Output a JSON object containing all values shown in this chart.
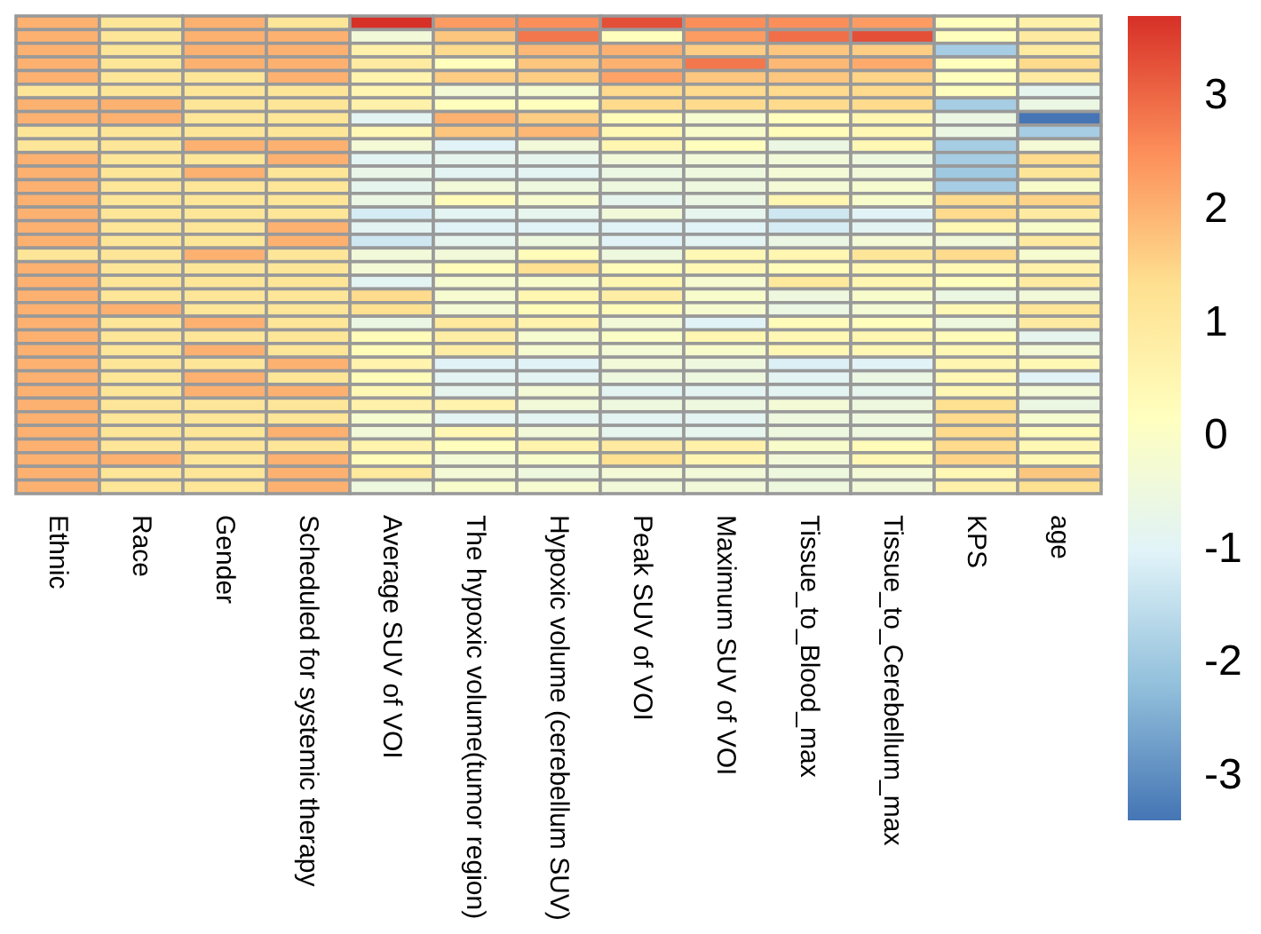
{
  "chart_data": {
    "type": "heatmap",
    "categories": [
      "Ethnic",
      "Race",
      "Gender",
      "Scheduled for systemic therapy",
      "Average SUV of VOI",
      "The hypoxic volume(tumor region)",
      "Hypoxic volume (cerebellum SUV)",
      "Peak SUV of VOI",
      "Maximum SUV of VOI",
      "Tissue_to_Blood_max",
      "Tissue_to_Cerebellum_max",
      "KPS",
      "age"
    ],
    "y_categories": [
      null,
      null,
      null,
      null,
      null,
      null,
      null,
      null,
      null,
      null,
      null,
      null,
      null,
      null,
      null,
      null,
      null,
      null,
      null,
      null,
      null,
      null,
      null,
      null,
      null,
      null,
      null,
      null,
      null,
      null,
      null,
      null,
      null,
      null,
      null
    ],
    "cells": [
      [
        2.0,
        1.1,
        2.0,
        1.1,
        3.7,
        2.3,
        2.5,
        3.3,
        2.5,
        2.5,
        2.3,
        0.2,
        0.7
      ],
      [
        2.0,
        1.1,
        2.0,
        2.0,
        -0.4,
        1.7,
        2.8,
        0.2,
        2.3,
        2.9,
        3.3,
        0.2,
        0.9
      ],
      [
        2.0,
        1.1,
        2.0,
        2.0,
        0.7,
        1.4,
        1.9,
        2.0,
        1.6,
        1.7,
        1.6,
        -1.9,
        0.9
      ],
      [
        2.0,
        1.1,
        2.0,
        2.0,
        0.9,
        0.2,
        1.7,
        2.0,
        2.8,
        1.9,
        2.1,
        0.2,
        1.4
      ],
      [
        2.0,
        1.1,
        1.1,
        2.0,
        0.6,
        1.6,
        1.6,
        2.2,
        1.7,
        1.7,
        1.5,
        0.2,
        0.9
      ],
      [
        1.1,
        1.1,
        1.1,
        1.1,
        0.5,
        -0.3,
        -0.2,
        1.4,
        1.4,
        1.4,
        1.4,
        0.2,
        -0.8
      ],
      [
        2.0,
        2.0,
        1.1,
        1.1,
        0.7,
        0.2,
        0.2,
        1.4,
        1.4,
        1.4,
        1.4,
        -1.9,
        -0.6
      ],
      [
        2.0,
        2.0,
        1.1,
        1.1,
        -0.9,
        2.0,
        1.6,
        0.3,
        -0.2,
        0.2,
        0.5,
        -0.6,
        -3.4
      ],
      [
        1.1,
        1.1,
        1.1,
        1.1,
        0.4,
        1.7,
        1.9,
        0.4,
        -0.1,
        0.3,
        0.4,
        -0.6,
        -1.9
      ],
      [
        1.1,
        1.1,
        2.0,
        2.0,
        -0.3,
        -1.0,
        -0.4,
        0.5,
        0.2,
        -0.6,
        0.4,
        -1.9,
        -0.3
      ],
      [
        2.0,
        1.1,
        1.1,
        2.0,
        -0.9,
        -0.8,
        -0.8,
        -0.4,
        -0.4,
        -0.4,
        -0.5,
        -1.9,
        1.4
      ],
      [
        2.0,
        1.1,
        2.0,
        1.1,
        -0.7,
        -0.9,
        -0.9,
        -0.6,
        -0.5,
        -0.3,
        -0.4,
        -2.0,
        1.1
      ],
      [
        2.0,
        1.1,
        1.1,
        1.1,
        -0.8,
        -0.4,
        -0.5,
        -0.5,
        -0.5,
        -0.3,
        -0.2,
        -1.9,
        -0.1
      ],
      [
        2.0,
        1.1,
        1.1,
        1.1,
        -0.6,
        0.3,
        -0.2,
        -0.8,
        -0.6,
        0.5,
        -0.1,
        1.4,
        1.5
      ],
      [
        2.0,
        1.1,
        1.1,
        1.1,
        -1.2,
        -0.9,
        -0.8,
        -0.4,
        -0.8,
        -1.3,
        -1.0,
        1.4,
        0.9
      ],
      [
        2.0,
        1.1,
        1.1,
        2.0,
        -0.9,
        -1.0,
        -1.0,
        -1.0,
        -1.0,
        -1.2,
        -0.9,
        0.4,
        -0.1
      ],
      [
        2.0,
        1.1,
        1.1,
        2.0,
        -1.3,
        -0.8,
        -0.5,
        -1.0,
        -0.9,
        -0.6,
        -0.3,
        -0.4,
        0.9
      ],
      [
        1.1,
        1.1,
        2.0,
        1.1,
        -0.4,
        -0.4,
        0.3,
        -0.5,
        0.4,
        0.5,
        1.1,
        1.4,
        -0.2
      ],
      [
        2.0,
        1.1,
        1.1,
        1.1,
        -0.3,
        0.3,
        1.3,
        0.3,
        0.4,
        0.3,
        0.4,
        0.4,
        0.7
      ],
      [
        2.0,
        1.1,
        1.1,
        1.1,
        -0.9,
        -0.2,
        -0.1,
        0.5,
        -0.2,
        1.0,
        0.5,
        0.2,
        0.9
      ],
      [
        2.0,
        1.1,
        1.1,
        1.1,
        1.4,
        -0.2,
        0.5,
        0.8,
        -0.1,
        -0.5,
        -0.1,
        -0.6,
        -0.4
      ],
      [
        2.0,
        2.0,
        1.1,
        1.1,
        1.3,
        -0.3,
        0.3,
        0.3,
        -0.2,
        -0.6,
        -0.3,
        0.4,
        1.1
      ],
      [
        2.0,
        1.1,
        2.0,
        1.1,
        -0.6,
        1.0,
        0.6,
        -0.4,
        -1.0,
        0.3,
        0.2,
        -0.5,
        0.9
      ],
      [
        2.0,
        1.1,
        1.1,
        1.1,
        0.3,
        0.8,
        -0.2,
        0.0,
        0.5,
        0.4,
        0.5,
        0.3,
        -0.8
      ],
      [
        2.0,
        1.1,
        2.0,
        1.1,
        0.3,
        0.8,
        -0.2,
        -0.3,
        -0.1,
        0.4,
        0.4,
        0.4,
        -0.3
      ],
      [
        2.0,
        1.1,
        1.1,
        2.0,
        0.6,
        -1.0,
        -1.0,
        -0.4,
        -0.5,
        -1.1,
        -1.0,
        0.5,
        0.4
      ],
      [
        2.0,
        1.1,
        2.0,
        1.1,
        0.3,
        -0.9,
        -0.9,
        -0.5,
        -0.5,
        -0.9,
        -0.6,
        0.4,
        -1.0
      ],
      [
        2.0,
        1.1,
        2.0,
        2.0,
        0.4,
        -0.8,
        -0.3,
        -0.9,
        -0.9,
        -0.9,
        -0.8,
        0.4,
        -0.3
      ],
      [
        2.0,
        1.1,
        1.1,
        1.1,
        0.7,
        0.6,
        -0.4,
        -0.5,
        -0.5,
        -0.3,
        -0.5,
        1.3,
        -0.6
      ],
      [
        2.0,
        1.1,
        1.1,
        1.1,
        -0.2,
        -0.9,
        -0.9,
        -0.9,
        -0.9,
        -0.5,
        -0.5,
        1.4,
        -0.2
      ],
      [
        2.0,
        1.1,
        1.1,
        2.0,
        -0.4,
        0.4,
        -0.4,
        -0.8,
        -0.8,
        -0.5,
        -0.5,
        1.4,
        0.3
      ],
      [
        2.0,
        1.1,
        1.1,
        1.1,
        0.6,
        0.2,
        0.6,
        0.9,
        0.7,
        -0.1,
        0.3,
        1.4,
        0.4
      ],
      [
        2.0,
        2.0,
        1.1,
        2.0,
        0.3,
        -0.3,
        -0.1,
        1.3,
        0.5,
        -0.4,
        0.4,
        1.5,
        0.4
      ],
      [
        2.0,
        1.1,
        1.1,
        2.0,
        1.0,
        -0.3,
        -0.5,
        -0.3,
        -0.4,
        -0.5,
        -0.3,
        0.4,
        1.7
      ],
      [
        2.0,
        1.1,
        1.1,
        2.0,
        -0.5,
        -0.1,
        -0.2,
        -0.4,
        -0.4,
        -0.5,
        -0.4,
        0.7,
        1.3
      ]
    ],
    "clim": [
      -3.4,
      3.7
    ],
    "cticks": [
      -3,
      -2,
      -1,
      0,
      1,
      2,
      3
    ]
  }
}
